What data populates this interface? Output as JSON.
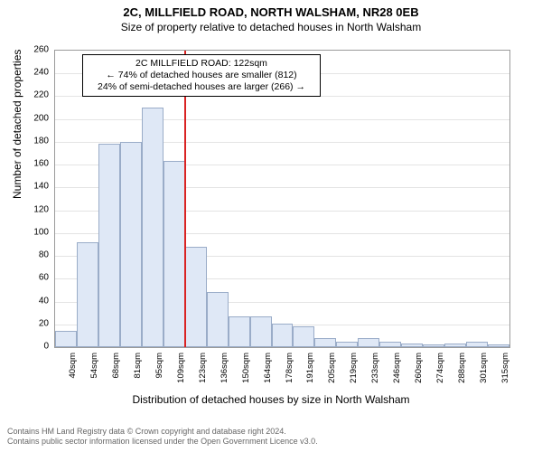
{
  "chart": {
    "type": "histogram",
    "title": "2C, MILLFIELD ROAD, NORTH WALSHAM, NR28 0EB",
    "subtitle": "Size of property relative to detached houses in North Walsham",
    "y_axis_label": "Number of detached properties",
    "x_axis_label": "Distribution of detached houses by size in North Walsham",
    "background_color": "#ffffff",
    "plot_border_color": "#9a9a9a",
    "grid_color": "#e4e4e4",
    "bar_fill": "#dfe8f6",
    "bar_border": "#9aacc8",
    "refline_color": "#d92323",
    "tick_fontsize": 10,
    "title_fontsize": 13,
    "label_fontsize": 12,
    "y": {
      "min": 0,
      "max": 260,
      "step": 20,
      "ticks": [
        0,
        20,
        40,
        60,
        80,
        100,
        120,
        140,
        160,
        180,
        200,
        220,
        240,
        260
      ]
    },
    "x": {
      "bin_start": 40,
      "bin_width": 13.75,
      "labels": [
        "40sqm",
        "54sqm",
        "68sqm",
        "81sqm",
        "95sqm",
        "109sqm",
        "123sqm",
        "136sqm",
        "150sqm",
        "164sqm",
        "178sqm",
        "191sqm",
        "205sqm",
        "219sqm",
        "233sqm",
        "246sqm",
        "260sqm",
        "274sqm",
        "288sqm",
        "301sqm",
        "315sqm"
      ]
    },
    "values": [
      14,
      92,
      178,
      180,
      210,
      163,
      88,
      48,
      27,
      27,
      21,
      18,
      8,
      5,
      8,
      5,
      3,
      2,
      3,
      5,
      2
    ],
    "reference": {
      "value_sqm": 122,
      "annotation_title": "2C MILLFIELD ROAD: 122sqm",
      "annotation_line2": "← 74% of detached houses are smaller (812)",
      "annotation_line3": "24% of semi-detached houses are larger (266) →"
    }
  },
  "footer": {
    "line1": "Contains HM Land Registry data © Crown copyright and database right 2024.",
    "line2": "Contains public sector information licensed under the Open Government Licence v3.0."
  }
}
